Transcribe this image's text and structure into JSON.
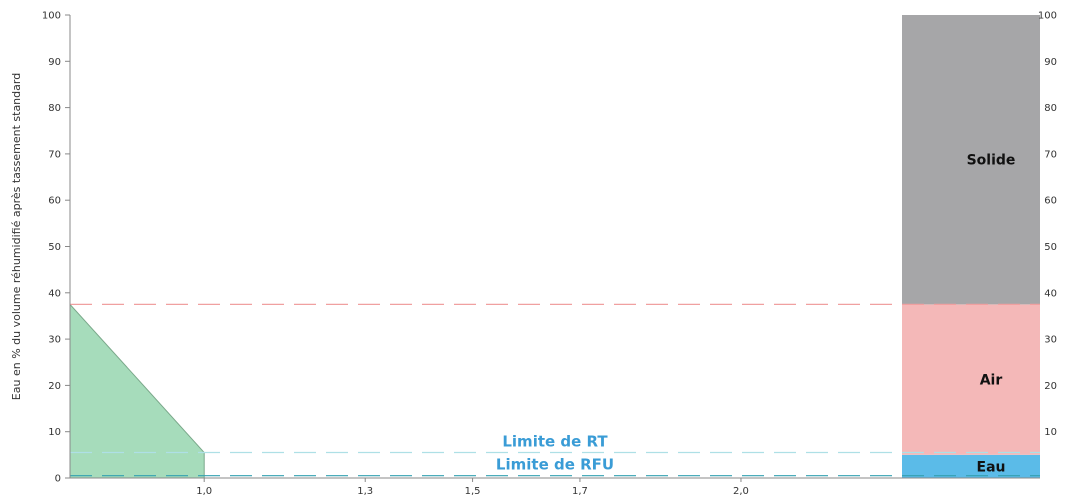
{
  "chart_data": {
    "type": "area",
    "ylabel": "Eau en % du volume réhumidifié après tassement standard",
    "ylim": [
      0,
      100
    ],
    "y_ticks": [
      "0",
      "10",
      "20",
      "30",
      "40",
      "50",
      "60",
      "70",
      "80",
      "90",
      "100"
    ],
    "right_y_ticks": [
      "10",
      "20",
      "30",
      "40",
      "50",
      "60",
      "70",
      "80",
      "90",
      "100"
    ],
    "x_ticks": [
      "1,0",
      "1,3",
      "1,5",
      "1,7",
      "2,0"
    ],
    "x_tick_values": [
      1.0,
      1.3,
      1.5,
      1.7,
      2.0
    ],
    "xlim": [
      0.75,
      2.3
    ],
    "series": [
      {
        "x": [
          0.75,
          1.0
        ],
        "values": [
          37.5,
          5.5
        ],
        "color": "#a6dcbb"
      }
    ],
    "limits": [
      {
        "label": "Limite de RT",
        "value": 5.5,
        "color": "#aee0e6"
      },
      {
        "label": "Limite de RFU",
        "value": 0.5,
        "color": "#33a0b0"
      },
      {
        "label": "",
        "value": 37.5,
        "color": "#f0a0a0"
      }
    ],
    "stacked_bar": {
      "segments": [
        {
          "label": "Eau",
          "value": 5.0,
          "color": "#5bbbe8"
        },
        {
          "label": "Air",
          "value": 32.5,
          "color": "#f4b8b8"
        },
        {
          "label": "Solide",
          "value": 62.5,
          "color": "#a6a6a8"
        }
      ]
    },
    "limit_label_color": "#3a9cd6"
  }
}
